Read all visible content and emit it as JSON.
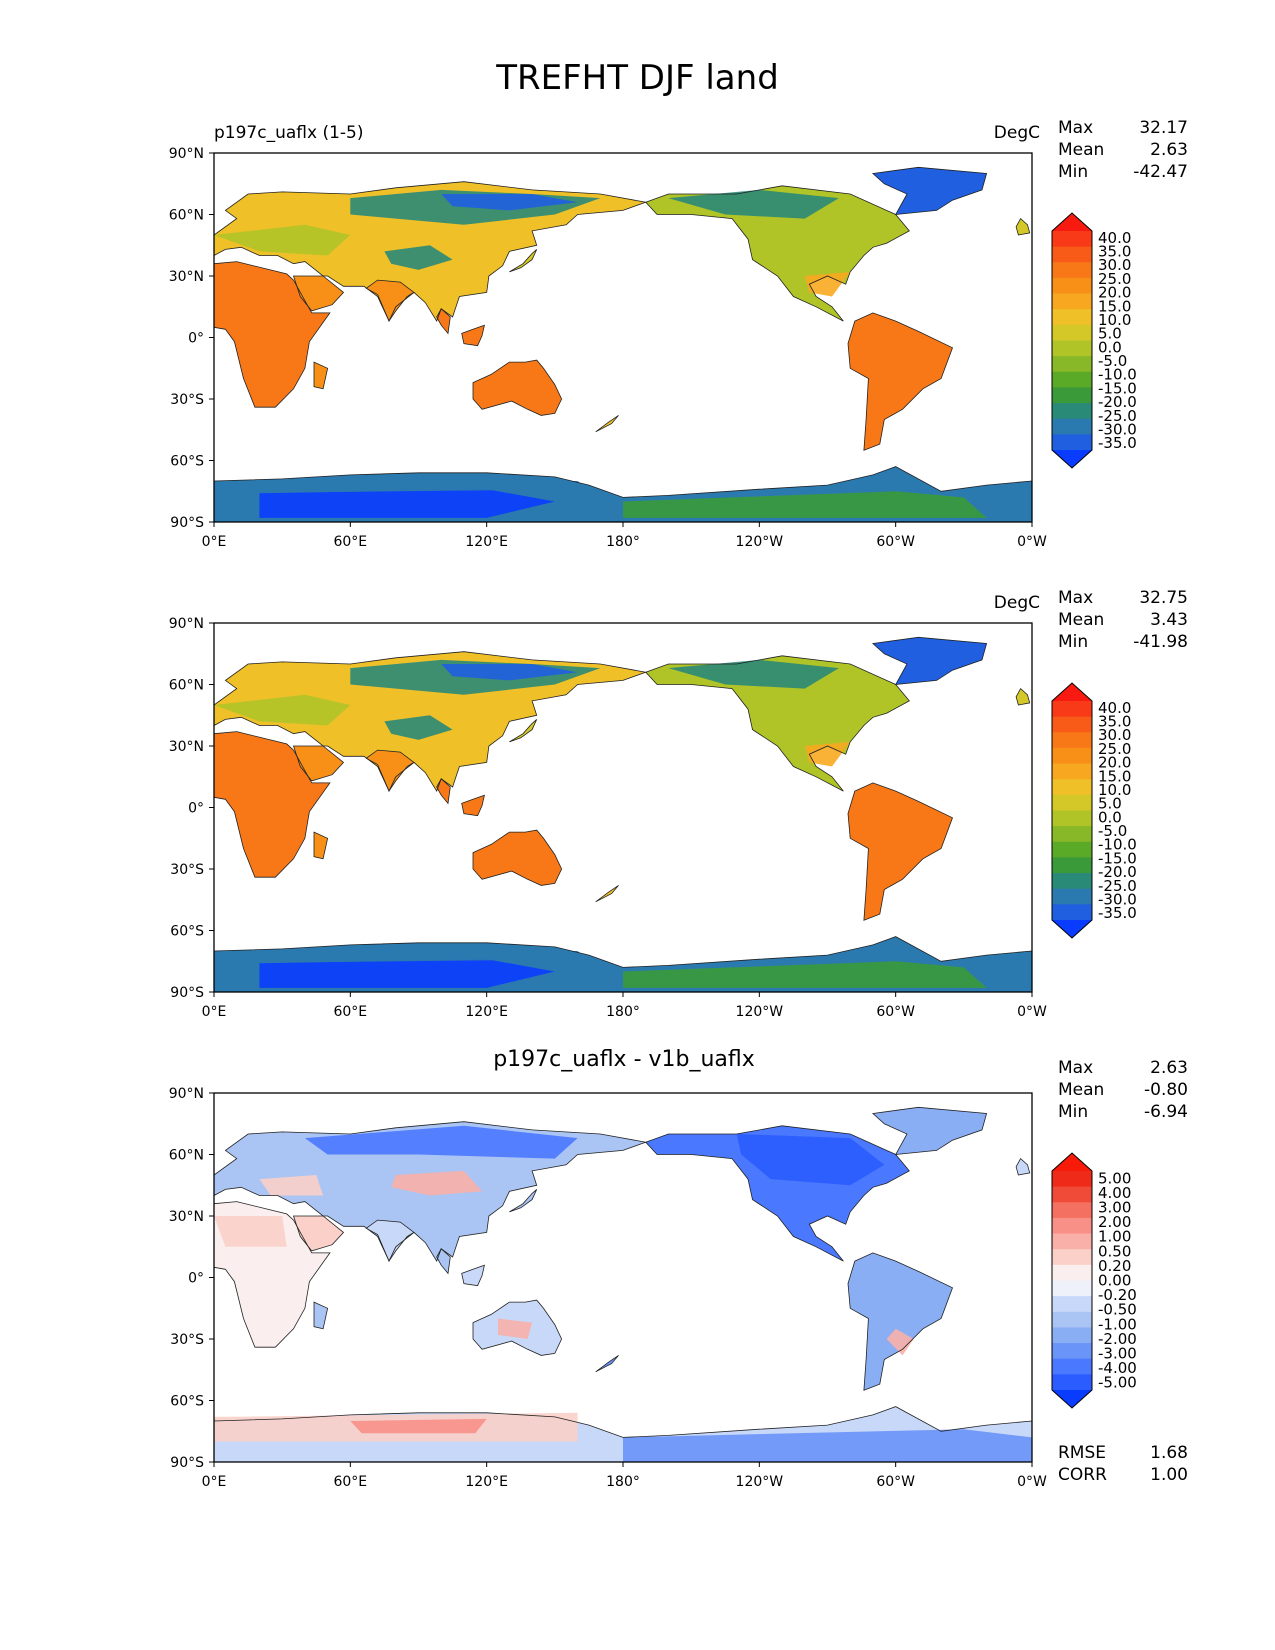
{
  "title": "TREFHT DJF land",
  "panels": [
    {
      "left_title": "p197c_uaflx (1-5)",
      "center_title": "",
      "units": "DegC",
      "stats": {
        "max_label": "Max",
        "max": "32.17",
        "mean_label": "Mean",
        "mean": "2.63",
        "min_label": "Min",
        "min": "-42.47"
      },
      "colorbar_ticks": [
        "40.0",
        "35.0",
        "30.0",
        "25.0",
        "20.0",
        "15.0",
        "10.0",
        "5.0",
        "0.0",
        "-5.0",
        "-10.0",
        "-15.0",
        "-20.0",
        "-25.0",
        "-30.0",
        "-35.0"
      ],
      "palette": "abs"
    },
    {
      "left_title": "",
      "center_title": "",
      "units": "DegC",
      "stats": {
        "max_label": "Max",
        "max": "32.75",
        "mean_label": "Mean",
        "mean": "3.43",
        "min_label": "Min",
        "min": "-41.98"
      },
      "colorbar_ticks": [
        "40.0",
        "35.0",
        "30.0",
        "25.0",
        "20.0",
        "15.0",
        "10.0",
        "5.0",
        "0.0",
        "-5.0",
        "-10.0",
        "-15.0",
        "-20.0",
        "-25.0",
        "-30.0",
        "-35.0"
      ],
      "palette": "abs"
    },
    {
      "left_title": "",
      "center_title": "p197c_uaflx - v1b_uaflx",
      "units": "",
      "stats": {
        "max_label": "Max",
        "max": "2.63",
        "mean_label": "Mean",
        "mean": "-0.80",
        "min_label": "Min",
        "min": "-6.94"
      },
      "colorbar_ticks": [
        "5.00",
        "4.00",
        "3.00",
        "2.00",
        "1.00",
        "0.50",
        "0.20",
        "0.00",
        "-0.20",
        "-0.50",
        "-1.00",
        "-2.00",
        "-3.00",
        "-4.00",
        "-5.00"
      ],
      "palette": "diff",
      "extra_stats": {
        "rmse_label": "RMSE",
        "rmse": "1.68",
        "corr_label": "CORR",
        "corr": "1.00"
      }
    }
  ],
  "axes": {
    "x_ticks": [
      "0°E",
      "60°E",
      "120°E",
      "180°",
      "120°W",
      "60°W",
      "0°W"
    ],
    "y_ticks": [
      "90°N",
      "60°N",
      "30°N",
      "0°",
      "30°S",
      "60°S",
      "90°S"
    ]
  },
  "colors": {
    "abs": [
      "#0a3cff",
      "#1f5fe0",
      "#2a7ab0",
      "#2a8a78",
      "#3a9a3a",
      "#5aaa28",
      "#88b828",
      "#b0c428",
      "#d4c828",
      "#f0c028",
      "#f8a820",
      "#f89018",
      "#f87818",
      "#f85a18",
      "#f83a18",
      "#f81a10"
    ],
    "diff": [
      "#0a3cff",
      "#2a5cff",
      "#4a78ff",
      "#6a94f8",
      "#8aaef4",
      "#aac4f4",
      "#c8d8f8",
      "#eef0fa",
      "#faeeee",
      "#fad0c8",
      "#f8b0a8",
      "#f89088",
      "#f47060",
      "#f04a38",
      "#f02a18",
      "#f81a08"
    ]
  },
  "chart_data": [
    {
      "type": "heatmap",
      "title": "TREFHT DJF land",
      "subtitle": "p197c_uaflx (1-5)",
      "units": "DegC",
      "projection": "PlateCarree, centered 180°",
      "xlim": [
        0,
        360
      ],
      "ylim": [
        -90,
        90
      ],
      "colorbar_levels": [
        -35,
        -30,
        -25,
        -20,
        -15,
        -10,
        -5,
        0,
        5,
        10,
        15,
        20,
        25,
        30,
        35,
        40
      ],
      "stats": {
        "max": 32.17,
        "mean": 2.63,
        "min": -42.47
      }
    },
    {
      "type": "heatmap",
      "units": "DegC",
      "projection": "PlateCarree, centered 180°",
      "xlim": [
        0,
        360
      ],
      "ylim": [
        -90,
        90
      ],
      "colorbar_levels": [
        -35,
        -30,
        -25,
        -20,
        -15,
        -10,
        -5,
        0,
        5,
        10,
        15,
        20,
        25,
        30,
        35,
        40
      ],
      "stats": {
        "max": 32.75,
        "mean": 3.43,
        "min": -41.98
      }
    },
    {
      "type": "heatmap",
      "title": "p197c_uaflx - v1b_uaflx",
      "projection": "PlateCarree, centered 180°",
      "xlim": [
        0,
        360
      ],
      "ylim": [
        -90,
        90
      ],
      "colorbar_levels": [
        -5,
        -4,
        -3,
        -2,
        -1,
        -0.5,
        -0.2,
        0,
        0.2,
        0.5,
        1,
        2,
        3,
        4,
        5
      ],
      "stats": {
        "max": 2.63,
        "mean": -0.8,
        "min": -6.94,
        "rmse": 1.68,
        "corr": 1.0
      }
    }
  ]
}
